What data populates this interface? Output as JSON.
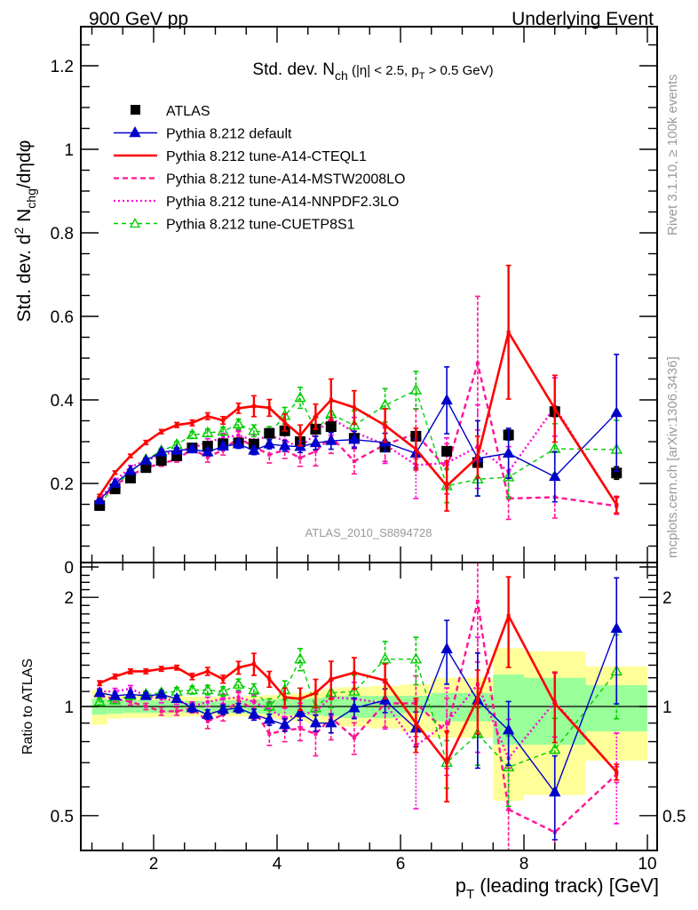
{
  "header": {
    "left": "900 GeV pp",
    "right": "Underlying Event"
  },
  "side_text": {
    "rivet": "Rivet 3.1.10, ≥ 100k events",
    "mcplots": "mcplots.cern.ch [arXiv:1306.3436]"
  },
  "watermark": "ATLAS_2010_S8894728",
  "colors": {
    "atlas": "#000000",
    "default": "#0000cc",
    "cteql1": "#ff0000",
    "mstw": "#ff1493",
    "nnpdf": "#ff00dd",
    "cuetp8s1": "#00cc00",
    "band_total": "#ffff99",
    "band_stat": "#99ff99"
  },
  "chart_data": [
    {
      "type": "line",
      "panel": "main",
      "title": "Std. dev. N_ch (|η| < 2.5, p_T > 0.5 GeV)",
      "title_parts": {
        "main": "Std. dev. N",
        "sub": "ch",
        "rest1": " (|η| < 2.5, p",
        "sub2": "T",
        "rest2": " > 0.5 GeV)"
      },
      "ylabel": "Std. dev. d² N_chg/dηdφ",
      "ylabel_parts": {
        "a": "Std. dev. d",
        "sup": "2",
        "b": " N",
        "sub": "chg",
        "c": "/dηdφ"
      },
      "xlim": [
        0.83,
        10.15
      ],
      "ylim": [
        0,
        1.29
      ],
      "yticks": [
        0,
        0.2,
        0.4,
        0.6,
        0.8,
        1,
        1.2
      ],
      "ytick_labels": [
        "0",
        "0.2",
        "0.4",
        "0.6",
        "0.8",
        "1",
        "1.2"
      ],
      "legend_position": "top-left",
      "x": [
        1.125,
        1.375,
        1.625,
        1.875,
        2.125,
        2.375,
        2.625,
        2.875,
        3.125,
        3.375,
        3.625,
        3.875,
        4.125,
        4.375,
        4.625,
        4.875,
        5.25,
        5.75,
        6.25,
        6.75,
        7.25,
        7.75,
        8.5,
        9.5
      ],
      "series": [
        {
          "key": "atlas",
          "name": "ATLAS",
          "style": "square-marker",
          "values": [
            0.147,
            0.187,
            0.213,
            0.238,
            0.255,
            0.266,
            0.285,
            0.289,
            0.295,
            0.297,
            0.294,
            0.32,
            0.326,
            0.3,
            0.33,
            0.336,
            0.308,
            0.287,
            0.313,
            0.277,
            0.25,
            0.316,
            0.372,
            0.225
          ],
          "errors": [
            0.002,
            0.002,
            0.002,
            0.003,
            0.003,
            0.003,
            0.003,
            0.004,
            0.004,
            0.004,
            0.005,
            0.005,
            0.006,
            0.006,
            0.007,
            0.007,
            0.006,
            0.007,
            0.008,
            0.009,
            0.01,
            0.012,
            0.012,
            0.015
          ]
        },
        {
          "key": "default",
          "name": "Pythia 8.212 default",
          "style": "solid-triangle",
          "values": [
            0.16,
            0.2,
            0.23,
            0.255,
            0.275,
            0.279,
            0.282,
            0.275,
            0.289,
            0.294,
            0.279,
            0.294,
            0.29,
            0.288,
            0.297,
            0.302,
            0.305,
            0.298,
            0.272,
            0.399,
            0.26,
            0.272,
            0.216,
            0.369
          ],
          "errors": [
            0.003,
            0.004,
            0.004,
            0.005,
            0.006,
            0.006,
            0.007,
            0.008,
            0.009,
            0.01,
            0.01,
            0.011,
            0.013,
            0.014,
            0.016,
            0.02,
            0.02,
            0.022,
            0.035,
            0.08,
            0.09,
            0.06,
            0.06,
            0.14
          ]
        },
        {
          "key": "cteql1",
          "name": "Pythia 8.212 tune-A14-CTEQL1",
          "style": "solid-thick",
          "values": [
            0.171,
            0.226,
            0.266,
            0.298,
            0.324,
            0.34,
            0.345,
            0.361,
            0.351,
            0.38,
            0.385,
            0.381,
            0.346,
            0.315,
            0.36,
            0.4,
            0.382,
            0.339,
            0.282,
            0.194,
            0.263,
            0.562,
            0.379,
            0.149
          ],
          "errors": [
            0.003,
            0.004,
            0.004,
            0.005,
            0.005,
            0.006,
            0.007,
            0.008,
            0.009,
            0.012,
            0.025,
            0.02,
            0.02,
            0.025,
            0.03,
            0.05,
            0.04,
            0.04,
            0.05,
            0.06,
            0.05,
            0.16,
            0.08,
            0.02
          ]
        },
        {
          "key": "mstw",
          "name": "Pythia 8.212 tune-A14-MSTW2008LO",
          "style": "dashed",
          "values": [
            0.157,
            0.196,
            0.219,
            0.238,
            0.247,
            0.258,
            0.282,
            0.263,
            0.28,
            0.309,
            0.288,
            0.269,
            0.28,
            0.261,
            0.277,
            0.312,
            0.253,
            0.293,
            0.319,
            0.235,
            0.488,
            0.164,
            0.167,
            0.146
          ],
          "errors": [
            0.003,
            0.004,
            0.004,
            0.005,
            0.006,
            0.007,
            0.008,
            0.012,
            0.012,
            0.015,
            0.016,
            0.02,
            0.02,
            0.02,
            0.035,
            0.04,
            0.03,
            0.04,
            0.06,
            0.06,
            0.16,
            0.05,
            0.05,
            0.02
          ]
        },
        {
          "key": "nnpdf",
          "name": "Pythia 8.212 tune-A14-NNPDF2.3LO",
          "style": "dotted",
          "values": [
            0.162,
            0.206,
            0.239,
            0.255,
            0.268,
            0.277,
            0.285,
            0.298,
            0.31,
            0.315,
            0.303,
            0.314,
            0.303,
            0.285,
            0.32,
            0.356,
            0.323,
            0.293,
            0.244,
            0.249,
            0.288,
            0.228,
            0.383,
            0.149
          ],
          "errors": [
            0.003,
            0.004,
            0.004,
            0.005,
            0.006,
            0.007,
            0.008,
            0.009,
            0.01,
            0.012,
            0.014,
            0.016,
            0.02,
            0.022,
            0.04,
            0.04,
            0.035,
            0.045,
            0.08,
            0.06,
            0.1,
            0.06,
            0.07,
            0.02
          ]
        },
        {
          "key": "cuetp8s1",
          "name": "Pythia 8.212 tune-CUETP8S1",
          "style": "dashed-open-triangle",
          "values": [
            0.151,
            0.194,
            0.228,
            0.257,
            0.278,
            0.293,
            0.316,
            0.321,
            0.325,
            0.342,
            0.326,
            0.32,
            0.362,
            0.405,
            0.327,
            0.366,
            0.339,
            0.387,
            0.423,
            0.194,
            0.21,
            0.215,
            0.283,
            0.281
          ],
          "errors": [
            0.003,
            0.004,
            0.004,
            0.005,
            0.006,
            0.007,
            0.008,
            0.009,
            0.01,
            0.012,
            0.014,
            0.016,
            0.02,
            0.025,
            0.03,
            0.03,
            0.035,
            0.04,
            0.045,
            0.04,
            0.04,
            0.05,
            0.06,
            0.07
          ]
        }
      ]
    },
    {
      "type": "line",
      "panel": "ratio",
      "ylabel": "Ratio to ATLAS",
      "xlabel": "p_T (leading track) [GeV]",
      "xlabel_parts": {
        "a": "p",
        "sub": "T",
        "b": " (leading track) [GeV]"
      },
      "yscale": "log",
      "ylim": [
        0.41,
        2.38
      ],
      "yticks": [
        0.5,
        1,
        2
      ],
      "ytick_labels": [
        "0.5",
        "1",
        "2"
      ],
      "xticks": [
        2,
        4,
        6,
        8,
        10
      ],
      "xtick_labels": [
        "2",
        "4",
        "6",
        "8",
        "10"
      ],
      "x": [
        1.125,
        1.375,
        1.625,
        1.875,
        2.125,
        2.375,
        2.625,
        2.875,
        3.125,
        3.375,
        3.625,
        3.875,
        4.125,
        4.375,
        4.625,
        4.875,
        5.25,
        5.75,
        6.25,
        6.75,
        7.25,
        7.75,
        8.5,
        9.5
      ],
      "bin_edges": [
        1.0,
        1.25,
        1.5,
        1.75,
        2.0,
        2.25,
        2.5,
        2.75,
        3.0,
        3.25,
        3.5,
        3.75,
        4.0,
        4.25,
        4.5,
        4.75,
        5.0,
        5.5,
        6.0,
        6.5,
        7.0,
        7.5,
        8.0,
        9.0,
        10.0
      ],
      "band_total": {
        "lo": [
          0.89,
          0.925,
          0.93,
          0.93,
          0.935,
          0.935,
          0.94,
          0.94,
          0.94,
          0.94,
          0.935,
          0.93,
          0.92,
          0.91,
          0.9,
          0.9,
          0.88,
          0.87,
          0.85,
          0.82,
          0.82,
          0.55,
          0.57,
          0.71,
          0.46
        ],
        "hi": [
          1.11,
          1.08,
          1.075,
          1.075,
          1.07,
          1.07,
          1.065,
          1.065,
          1.065,
          1.065,
          1.07,
          1.075,
          1.08,
          1.09,
          1.1,
          1.12,
          1.13,
          1.14,
          1.15,
          1.2,
          1.2,
          1.45,
          1.42,
          1.29,
          1.55
        ]
      },
      "band_stat": {
        "lo": [
          0.95,
          0.955,
          0.96,
          0.96,
          0.96,
          0.965,
          0.965,
          0.965,
          0.96,
          0.96,
          0.955,
          0.955,
          0.95,
          0.95,
          0.945,
          0.94,
          0.93,
          0.93,
          0.96,
          0.91,
          0.91,
          0.785,
          0.785,
          0.854,
          0.73
        ],
        "hi": [
          1.05,
          1.045,
          1.04,
          1.04,
          1.04,
          1.035,
          1.035,
          1.035,
          1.04,
          1.04,
          1.045,
          1.045,
          1.05,
          1.05,
          1.055,
          1.06,
          1.07,
          1.07,
          1.07,
          1.09,
          1.09,
          1.225,
          1.2,
          1.145,
          1.27
        ]
      },
      "series": [
        {
          "key": "default",
          "values": [
            1.09,
            1.07,
            1.08,
            1.07,
            1.08,
            1.05,
            0.99,
            0.95,
            0.98,
            0.99,
            0.95,
            0.92,
            0.89,
            0.96,
            0.9,
            0.9,
            0.99,
            1.04,
            0.87,
            1.44,
            1.04,
            0.86,
            0.58,
            1.64
          ],
          "rel_err": [
            0.02,
            0.02,
            0.02,
            0.02,
            0.02,
            0.02,
            0.025,
            0.03,
            0.03,
            0.03,
            0.035,
            0.035,
            0.04,
            0.045,
            0.05,
            0.06,
            0.065,
            0.075,
            0.11,
            0.2,
            0.35,
            0.2,
            0.26,
            0.38
          ]
        },
        {
          "key": "cteql1",
          "values": [
            1.16,
            1.21,
            1.25,
            1.25,
            1.27,
            1.28,
            1.21,
            1.25,
            1.19,
            1.28,
            1.31,
            1.19,
            1.06,
            1.05,
            1.09,
            1.19,
            1.24,
            1.18,
            0.9,
            0.7,
            1.05,
            1.78,
            1.02,
            0.66
          ],
          "rel_err": [
            0.015,
            0.015,
            0.015,
            0.015,
            0.015,
            0.015,
            0.02,
            0.025,
            0.025,
            0.04,
            0.07,
            0.05,
            0.06,
            0.07,
            0.09,
            0.12,
            0.1,
            0.11,
            0.17,
            0.22,
            0.2,
            0.28,
            0.22,
            0.05
          ]
        },
        {
          "key": "mstw",
          "values": [
            1.07,
            1.05,
            1.03,
            1.0,
            0.97,
            0.97,
            0.99,
            0.91,
            0.95,
            1.04,
            0.98,
            0.84,
            0.86,
            0.87,
            0.84,
            0.93,
            0.82,
            1.02,
            1.02,
            0.85,
            1.95,
            0.52,
            0.45,
            0.65
          ],
          "rel_err": [
            0.02,
            0.02,
            0.02,
            0.02,
            0.025,
            0.025,
            0.03,
            0.045,
            0.04,
            0.05,
            0.055,
            0.07,
            0.07,
            0.075,
            0.13,
            0.13,
            0.1,
            0.14,
            0.19,
            0.24,
            0.32,
            0.3,
            0.3,
            0.05
          ]
        },
        {
          "key": "nnpdf",
          "values": [
            1.1,
            1.1,
            1.12,
            1.07,
            1.05,
            1.04,
            1.0,
            1.03,
            1.05,
            1.06,
            1.03,
            0.98,
            0.93,
            0.95,
            0.97,
            1.06,
            1.05,
            1.02,
            0.78,
            0.9,
            1.15,
            0.72,
            1.03,
            0.66
          ],
          "rel_err": [
            0.02,
            0.02,
            0.02,
            0.02,
            0.025,
            0.025,
            0.03,
            0.03,
            0.03,
            0.04,
            0.045,
            0.05,
            0.065,
            0.075,
            0.12,
            0.11,
            0.11,
            0.15,
            0.33,
            0.25,
            0.35,
            0.28,
            0.2,
            0.28
          ]
        },
        {
          "key": "cuetp8s1",
          "values": [
            1.03,
            1.04,
            1.07,
            1.08,
            1.09,
            1.1,
            1.11,
            1.11,
            1.1,
            1.15,
            1.11,
            1.0,
            1.11,
            1.35,
            0.99,
            1.09,
            1.1,
            1.35,
            1.35,
            0.7,
            0.84,
            0.68,
            0.76,
            1.25
          ],
          "rel_err": [
            0.02,
            0.02,
            0.02,
            0.02,
            0.02,
            0.025,
            0.025,
            0.03,
            0.03,
            0.035,
            0.04,
            0.05,
            0.06,
            0.07,
            0.09,
            0.09,
            0.11,
            0.12,
            0.15,
            0.15,
            0.18,
            0.22,
            0.22,
            0.26
          ]
        }
      ]
    }
  ]
}
